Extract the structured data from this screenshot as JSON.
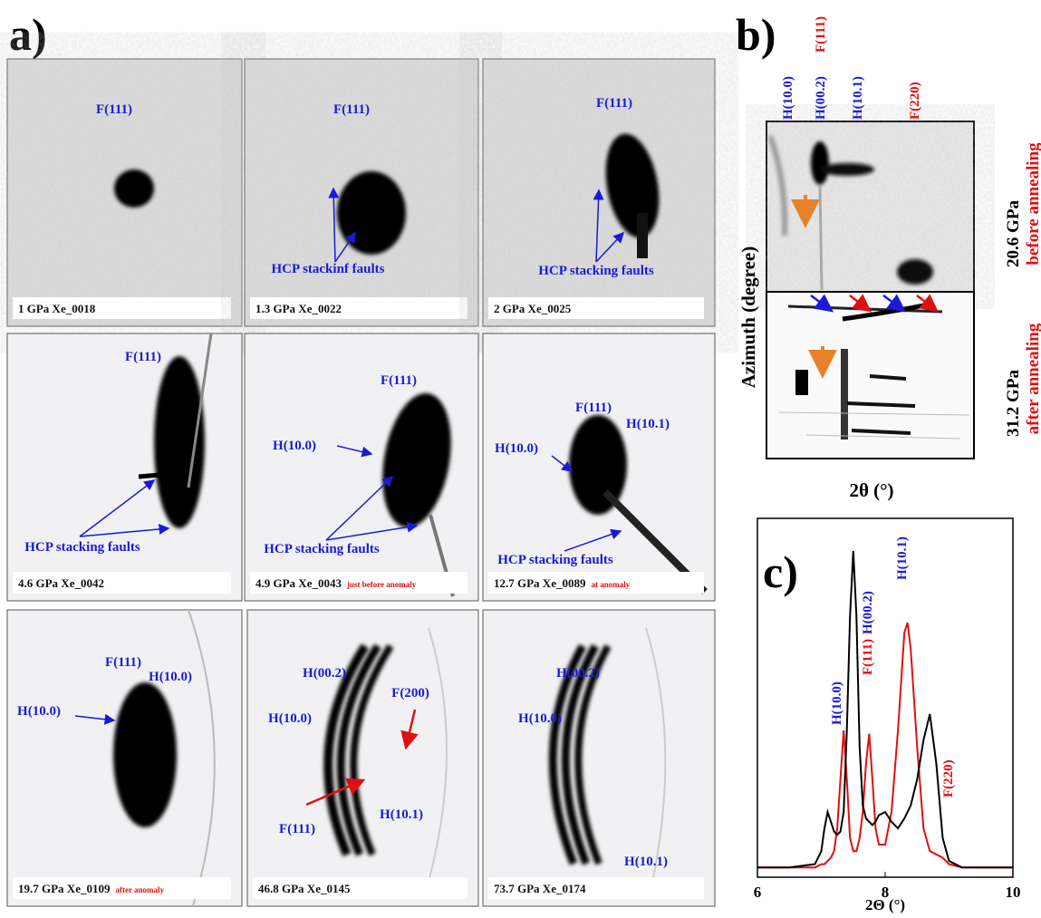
{
  "panel_a": {
    "label": "a)",
    "tiles": [
      {
        "caption": "1 GPa Xe_0018",
        "labels": [
          "F(111)"
        ]
      },
      {
        "caption": "1.3 GPa Xe_0022",
        "labels": [
          "F(111)",
          "HCP stackinf faults"
        ]
      },
      {
        "caption": "2 GPa Xe_0025",
        "labels": [
          "F(111)",
          "HCP stacking faults"
        ]
      },
      {
        "caption": "4.6 GPa Xe_0042",
        "labels": [
          "F(111)",
          "HCP stacking faults"
        ]
      },
      {
        "caption": "4.9 GPa Xe_0043",
        "note": "just before anomaly",
        "labels": [
          "F(111)",
          "H(10.0)",
          "HCP stacking faults"
        ]
      },
      {
        "caption": "12.7 GPa Xe_0089",
        "note": "at anomaly",
        "labels": [
          "F(111)",
          "H(10.1)",
          "H(10.0)",
          "HCP stacking faults"
        ]
      },
      {
        "caption": "19.7 GPa Xe_0109",
        "note": "after anomaly",
        "labels": [
          "F(111)",
          "H(10.0)",
          "H(10.0)"
        ]
      },
      {
        "caption": "46.8 GPa Xe_0145",
        "labels": [
          "H(00.2)",
          "F(200)",
          "H(10.0)",
          "F(111)",
          "H(10.1)"
        ]
      },
      {
        "caption": "73.7 GPa Xe_0174",
        "labels": [
          "H(00.2)",
          "H(10.0)",
          "H(10.1)"
        ]
      }
    ]
  },
  "panel_b": {
    "label": "b)",
    "top_labels": [
      "H(10.0)",
      "H(00.2)",
      "F(111)",
      "H(10.1)",
      "F(220)"
    ],
    "y_label": "Azimuth (degree)",
    "x_label": "2θ (°)",
    "upper": {
      "pressure": "20.6 GPa",
      "condition": "before annealing"
    },
    "lower": {
      "pressure": "31.2 GPa",
      "condition": "after annealing"
    }
  },
  "chart_data": {
    "type": "line",
    "label": "c)",
    "x_label": "2Θ (°)",
    "xlim": [
      6,
      10
    ],
    "xticks": [
      6,
      8,
      10
    ],
    "ylim": [
      0,
      1.1
    ],
    "x": [
      6,
      6.5,
      6.9,
      7.0,
      7.05,
      7.1,
      7.15,
      7.2,
      7.25,
      7.3,
      7.35,
      7.4,
      7.45,
      7.5,
      7.55,
      7.6,
      7.65,
      7.7,
      7.75,
      7.8,
      7.85,
      7.9,
      8.0,
      8.1,
      8.2,
      8.3,
      8.35,
      8.4,
      8.5,
      8.6,
      8.7,
      8.8,
      8.9,
      9.0,
      9.2,
      9.5,
      10
    ],
    "series": [
      {
        "color": "#000000",
        "values": [
          0.03,
          0.03,
          0.04,
          0.08,
          0.15,
          0.2,
          0.17,
          0.14,
          0.13,
          0.14,
          0.2,
          0.45,
          0.8,
          1.0,
          0.8,
          0.4,
          0.22,
          0.18,
          0.17,
          0.16,
          0.17,
          0.19,
          0.2,
          0.17,
          0.15,
          0.18,
          0.2,
          0.22,
          0.3,
          0.42,
          0.5,
          0.35,
          0.12,
          0.05,
          0.03,
          0.03,
          0.03
        ]
      },
      {
        "color": "#e01010",
        "values": [
          0.03,
          0.03,
          0.03,
          0.04,
          0.04,
          0.05,
          0.06,
          0.08,
          0.15,
          0.3,
          0.45,
          0.3,
          0.12,
          0.08,
          0.08,
          0.12,
          0.2,
          0.35,
          0.44,
          0.3,
          0.15,
          0.1,
          0.1,
          0.2,
          0.45,
          0.75,
          0.78,
          0.7,
          0.4,
          0.15,
          0.08,
          0.07,
          0.06,
          0.04,
          0.03,
          0.03,
          0.03
        ]
      }
    ],
    "annotations": [
      {
        "text": "H(10.0)",
        "color": "#1a1ad6"
      },
      {
        "text": "F(111)",
        "color": "#e01010"
      },
      {
        "text": "H(00.2)",
        "color": "#1a1ad6"
      },
      {
        "text": "H(10.1)",
        "color": "#1a1ad6"
      },
      {
        "text": "F(220)",
        "color": "#e01010"
      }
    ]
  }
}
